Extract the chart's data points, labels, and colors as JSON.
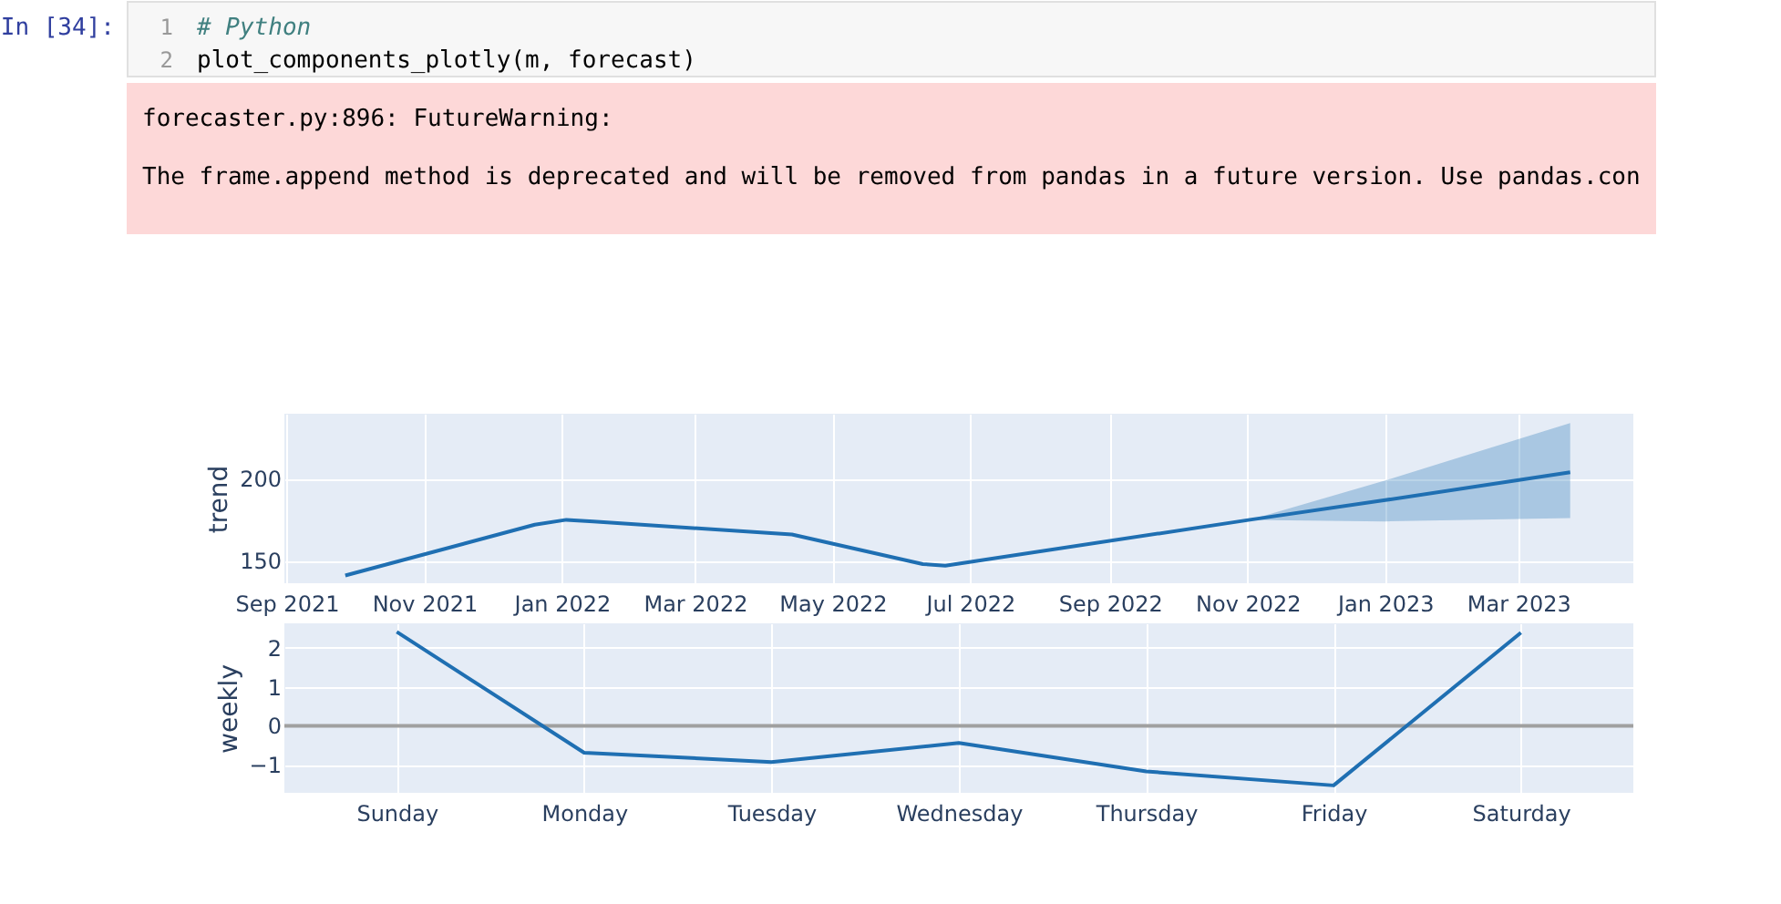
{
  "chart_data": [
    {
      "type": "other",
      "annotations": [
        "In [34]:",
        "1",
        "2",
        "# Python",
        "plot_components_plotly(m, forecast)",
        "forecaster.py:896: FutureWarning:",
        "The frame.append method is deprecated and will be removed from pandas in a future version. Use pandas.con"
      ]
    },
    {
      "type": "line",
      "ylabel": "trend",
      "x": [
        "2021-09-27",
        "2021-12-20",
        "2022-01-03",
        "2022-01-15",
        "2022-04-13",
        "2022-06-10",
        "2022-06-20",
        "2022-11-02",
        "2023-01-01",
        "2023-03-24"
      ],
      "series": [
        {
          "color": "#1f6fb2",
          "values": [
            141,
            172,
            175,
            174,
            166,
            148,
            147,
            175,
            187,
            204
          ],
          "lower": [
            null,
            null,
            null,
            null,
            null,
            null,
            null,
            175,
            174,
            176
          ],
          "upper": [
            null,
            null,
            null,
            null,
            null,
            null,
            null,
            175,
            199,
            234
          ]
        }
      ],
      "xlim": [
        "2021-08-31",
        "2023-04-21"
      ],
      "xticks": [
        {
          "value": "2021-09-01",
          "label": "Sep 2021"
        },
        {
          "value": "2021-11-01",
          "label": "Nov 2021"
        },
        {
          "value": "2022-01-01",
          "label": "Jan 2022"
        },
        {
          "value": "2022-03-01",
          "label": "Mar 2022"
        },
        {
          "value": "2022-05-01",
          "label": "May 2022"
        },
        {
          "value": "2022-07-01",
          "label": "Jul 2022"
        },
        {
          "value": "2022-09-01",
          "label": "Sep 2022"
        },
        {
          "value": "2022-11-01",
          "label": "Nov 2022"
        },
        {
          "value": "2023-01-01",
          "label": "Jan 2023"
        },
        {
          "value": "2023-03-01",
          "label": "Mar 2023"
        }
      ],
      "ylim": [
        136.3,
        239.7
      ],
      "yticks": [
        150,
        200
      ],
      "grid": true
    },
    {
      "type": "line",
      "ylabel": "weekly",
      "categories": [
        "Sunday",
        "Monday",
        "Tuesday",
        "Wednesday",
        "Thursday",
        "Friday",
        "Saturday"
      ],
      "series": [
        {
          "color": "#1f6fb2",
          "values": [
            2.41,
            -0.69,
            -0.93,
            -0.44,
            -1.17,
            -1.53,
            2.39
          ]
        }
      ],
      "ylim": [
        -1.72,
        2.63
      ],
      "yticks": [
        -1,
        0,
        1,
        2
      ],
      "grid": true,
      "ref_lines": [
        {
          "axis": "y",
          "value": 0,
          "color": "#a0a0a0"
        }
      ]
    }
  ]
}
